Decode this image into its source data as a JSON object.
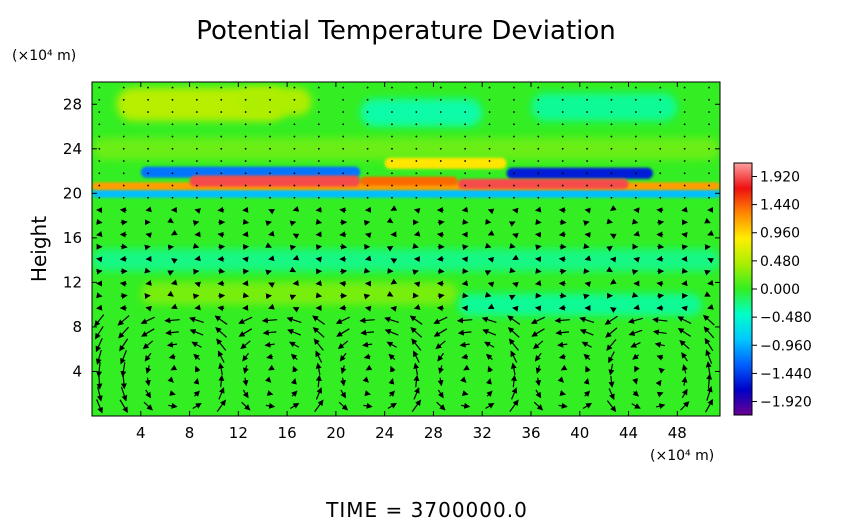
{
  "chart_data": {
    "type": "heatmap",
    "title": "Potential Temperature Deviation",
    "ylabel": "Height",
    "x_unit": "(×10⁴ m)",
    "y_unit": "(×10⁴ m)",
    "footer": "TIME = 3700000.0",
    "xlim": [
      0,
      51.5
    ],
    "ylim": [
      0,
      30
    ],
    "x_ticks": [
      4,
      8,
      12,
      16,
      20,
      24,
      28,
      32,
      36,
      40,
      44,
      48
    ],
    "y_ticks": [
      4,
      8,
      12,
      16,
      20,
      24,
      28
    ],
    "colorbar": {
      "range": [
        -2.15,
        2.15
      ],
      "ticks": [
        "1.920",
        "1.440",
        "0.960",
        "0.480",
        "0.000",
        "−0.480",
        "−0.960",
        "−1.440",
        "−1.920"
      ],
      "tick_values": [
        1.92,
        1.44,
        0.96,
        0.48,
        0.0,
        -0.48,
        -0.96,
        -1.44,
        -1.92
      ]
    },
    "field_features": [
      {
        "desc": "warm layer",
        "x": [
          8,
          44
        ],
        "y": [
          20.5,
          21.8
        ],
        "value": 1.9
      },
      {
        "desc": "cold layer above",
        "x": [
          6,
          46
        ],
        "y": [
          21.5,
          22.5
        ],
        "value": -1.6
      },
      {
        "desc": "cold layer below",
        "x": [
          2,
          50
        ],
        "y": [
          19.5,
          20.3
        ],
        "value": -0.9
      },
      {
        "desc": "cyan patches near top",
        "x": [
          22,
          48
        ],
        "y": [
          26,
          29
        ],
        "value": -0.4
      },
      {
        "desc": "yellow patches near top",
        "x": [
          2,
          16
        ],
        "y": [
          26,
          29
        ],
        "value": 0.5
      }
    ],
    "circulation_cells": [
      {
        "x_center": 7,
        "y_center": 3.5
      },
      {
        "x_center": 15,
        "y_center": 3.5
      },
      {
        "x_center": 23,
        "y_center": 3.5
      },
      {
        "x_center": 31,
        "y_center": 3.5
      },
      {
        "x_center": 39,
        "y_center": 3.5
      },
      {
        "x_center": 46,
        "y_center": 3.5
      }
    ]
  },
  "colors": {
    "background_field": "#33ee22",
    "colorbar_stops": [
      "#6a0090",
      "#0000c8",
      "#0060ff",
      "#00c8ff",
      "#00ffc8",
      "#33ee22",
      "#aaee00",
      "#ffee00",
      "#ff8800",
      "#ee1010",
      "#ffa0a0"
    ],
    "arrow": "#000000"
  }
}
